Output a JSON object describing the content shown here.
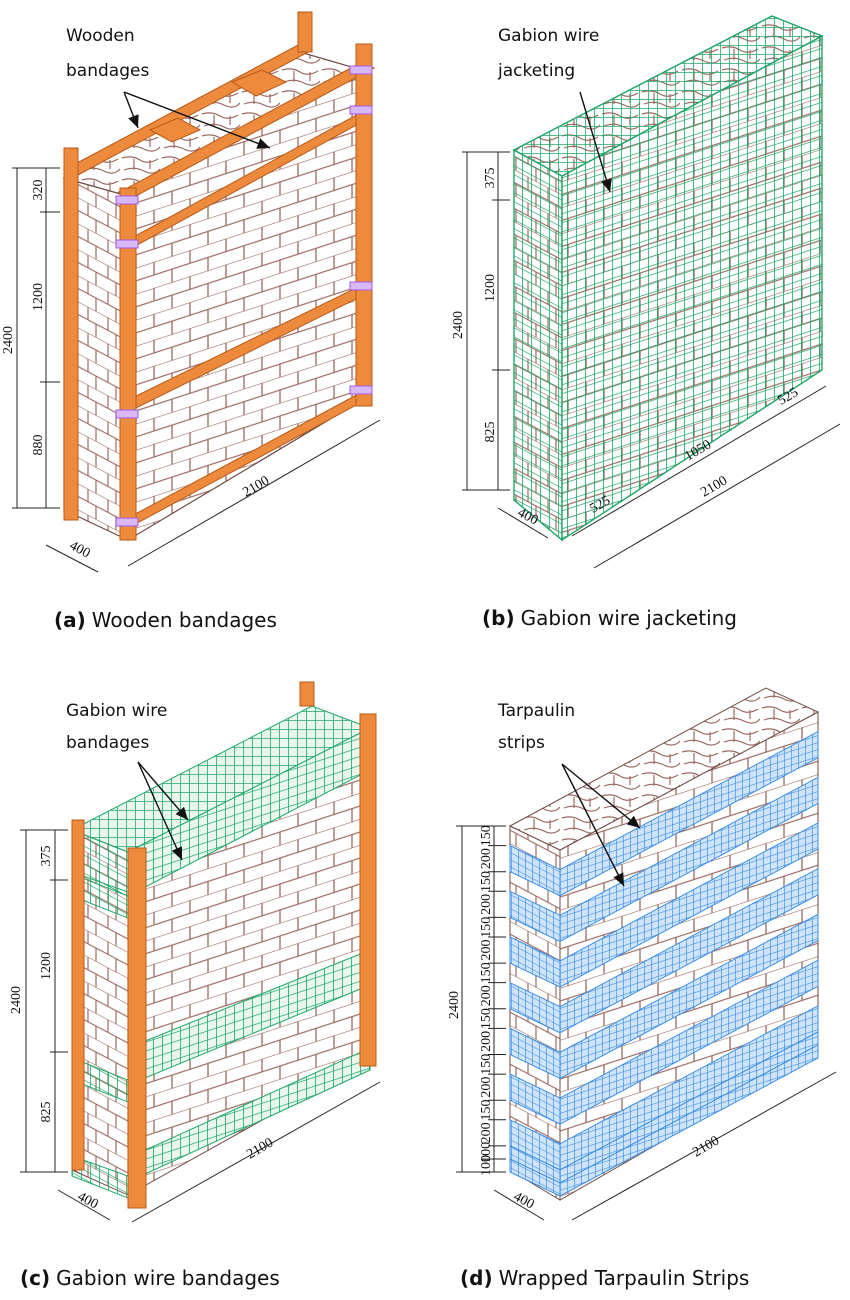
{
  "panels": {
    "a": {
      "tag": "(a)",
      "caption": "Wooden bandages",
      "label_line1": "Wooden",
      "label_line2": "bandages",
      "dims": {
        "total": "2400",
        "top": "320",
        "mid": "1200",
        "bot": "880",
        "length": "2100",
        "depth": "400"
      }
    },
    "b": {
      "tag": "(b)",
      "caption": "Gabion wire jacketing",
      "label_line1": "Gabion wire",
      "label_line2": "jacketing",
      "dims": {
        "total": "2400",
        "top": "375",
        "mid": "1200",
        "bot": "825",
        "length": "2100",
        "depth": "400",
        "seg1": "525",
        "seg2": "1050",
        "seg3": "525"
      }
    },
    "c": {
      "tag": "(c)",
      "caption": "Gabion wire bandages",
      "label_line1": "Gabion wire",
      "label_line2": "bandages",
      "dims": {
        "total": "2400",
        "top": "375",
        "mid": "1200",
        "bot": "825",
        "length": "2100",
        "depth": "400"
      }
    },
    "d": {
      "tag": "(d)",
      "caption": "Wrapped Tarpaulin Strips",
      "label_line1": "Tarpaulin",
      "label_line2": "strips",
      "dims": {
        "total": "2400",
        "length": "2100",
        "depth": "400",
        "strip_dims": [
          "150",
          "200",
          "150",
          "200",
          "150",
          "200",
          "150",
          "200",
          "150",
          "200",
          "150",
          "200",
          "150",
          "200",
          "100",
          "100"
        ]
      }
    }
  },
  "colors": {
    "wood": "#ee8a3c",
    "wood_dark": "#b85a18",
    "mortar": "#9b6a62",
    "gabion": "#1fa86a",
    "tarp": "#3b8ee6",
    "tarp_fill": "#cfe4fb",
    "purple": "#a259e0",
    "dim": "#222222"
  }
}
